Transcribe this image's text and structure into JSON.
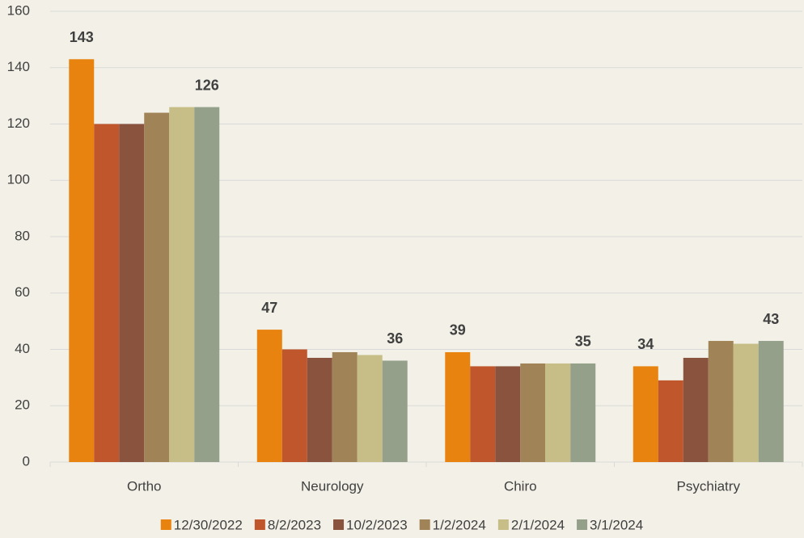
{
  "chart_data": {
    "type": "bar",
    "categories": [
      "Ortho",
      "Neurology",
      "Chiro",
      "Psychiatry"
    ],
    "series": [
      {
        "name": "12/30/2022",
        "color": "#e8830f",
        "values": [
          143,
          47,
          39,
          34
        ],
        "data_labels": true
      },
      {
        "name": "8/2/2023",
        "color": "#c0562c",
        "values": [
          120,
          40,
          34,
          29
        ],
        "data_labels": false
      },
      {
        "name": "10/2/2023",
        "color": "#8a533e",
        "values": [
          120,
          37,
          34,
          37
        ],
        "data_labels": false
      },
      {
        "name": "1/2/2024",
        "color": "#a08457",
        "values": [
          124,
          39,
          35,
          43
        ],
        "data_labels": false
      },
      {
        "name": "2/1/2024",
        "color": "#c6be86",
        "values": [
          126,
          38,
          35,
          42
        ],
        "data_labels": false
      },
      {
        "name": "3/1/2024",
        "color": "#94a089",
        "values": [
          126,
          36,
          35,
          43
        ],
        "data_labels": true
      }
    ],
    "ylim": [
      0,
      160
    ],
    "yticks": [
      0,
      20,
      40,
      60,
      80,
      100,
      120,
      140,
      160
    ],
    "grid": true,
    "legend": "bottom"
  }
}
